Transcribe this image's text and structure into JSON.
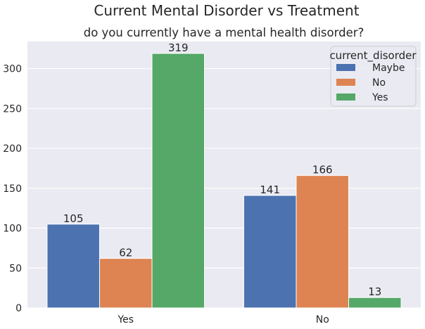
{
  "chart_data": {
    "type": "bar",
    "title": "Current Mental Disorder vs Treatment",
    "subtitle": "do you currently have a mental health disorder?",
    "xlabel": "",
    "ylabel": "",
    "categories": [
      "Yes",
      "No"
    ],
    "series": [
      {
        "name": "Maybe",
        "color": "#4c72b0",
        "values": [
          105,
          141
        ]
      },
      {
        "name": "No",
        "color": "#dd8452",
        "values": [
          62,
          166
        ]
      },
      {
        "name": "Yes",
        "color": "#55a868",
        "values": [
          319,
          13
        ]
      }
    ],
    "ylim": [
      0,
      334
    ],
    "yticks": [
      0,
      50,
      100,
      150,
      200,
      250,
      300
    ],
    "grid": true,
    "legend": {
      "title": "current_disorder",
      "placement": "top-right"
    },
    "colors": {
      "background": "#eaeaf2",
      "grid": "#ffffff",
      "text": "#262626"
    }
  }
}
